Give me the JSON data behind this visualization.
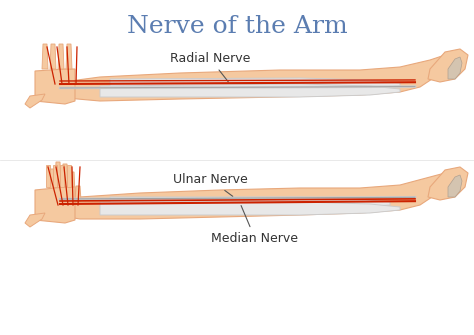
{
  "title": "Nerve of the Arm",
  "title_color": "#5b7db1",
  "title_fontsize": 18,
  "background_color": "#ffffff",
  "skin_color": "#f5c9a0",
  "skin_dark": "#e8a87c",
  "skin_light": "#fde8d0",
  "bone_color": "#e8e8e8",
  "bone_outline": "#cccccc",
  "nerve_red": "#cc2200",
  "nerve_gray": "#aaaaaa",
  "nerve_outline": "#888888",
  "label_median": "Median Nerve",
  "label_ulnar": "Ulnar Nerve",
  "label_radial": "Radial Nerve",
  "label_color": "#333333",
  "label_fontsize": 9
}
